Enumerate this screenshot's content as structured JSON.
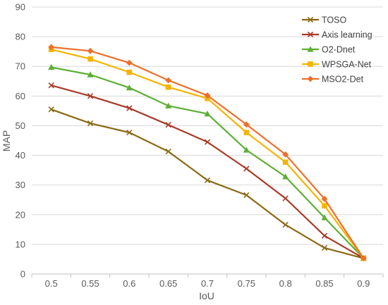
{
  "chart_data": {
    "type": "line",
    "xlabel": "IoU",
    "ylabel": "MAP",
    "x": [
      "0.5",
      "0.55",
      "0.6",
      "0.65",
      "0.7",
      "0.75",
      "0.8",
      "0.85",
      "0.9"
    ],
    "ylim": [
      0,
      90
    ],
    "yticks": [
      0,
      10,
      20,
      30,
      40,
      50,
      60,
      70,
      80,
      90
    ],
    "grid": "horizontal",
    "legend_position": "top-right",
    "series": [
      {
        "name": "TOSO",
        "color": "#8B6914",
        "marker": "x",
        "values": [
          55.5,
          50.8,
          47.7,
          41.3,
          31.6,
          26.6,
          16.6,
          8.8,
          5.3
        ]
      },
      {
        "name": "Axis learning",
        "color": "#A83A26",
        "marker": "x",
        "values": [
          63.6,
          60.0,
          55.9,
          50.3,
          44.5,
          35.5,
          25.5,
          12.9,
          5.3
        ]
      },
      {
        "name": "O2-Dnet",
        "color": "#5DAF34",
        "marker": "triangle",
        "values": [
          69.7,
          67.2,
          62.8,
          56.7,
          54.0,
          41.8,
          32.8,
          19.0,
          5.3
        ]
      },
      {
        "name": "WPSGA-Net",
        "color": "#F4B400",
        "marker": "square",
        "values": [
          75.7,
          72.5,
          68.0,
          63.0,
          59.2,
          47.7,
          37.7,
          23.0,
          5.3
        ]
      },
      {
        "name": "MSO2-Det",
        "color": "#EE6E2A",
        "marker": "diamond",
        "values": [
          76.5,
          75.2,
          71.2,
          65.3,
          60.2,
          50.4,
          40.3,
          25.3,
          5.3
        ]
      }
    ]
  }
}
